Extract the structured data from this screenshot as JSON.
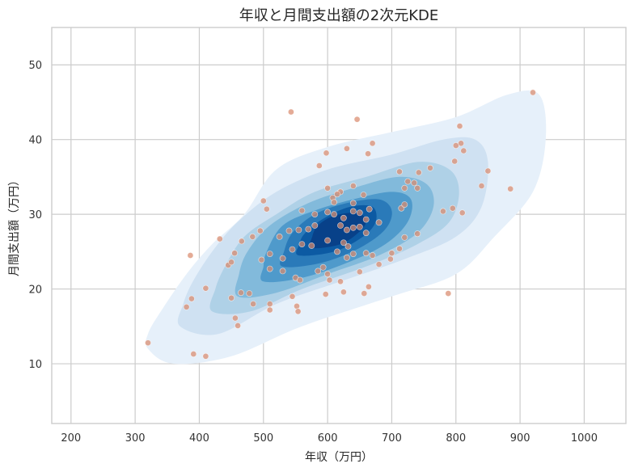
{
  "chart_data": {
    "type": "kde-scatter",
    "title": "年収と月間支出額の2次元KDE",
    "xlabel": "年収（万円）",
    "ylabel": "月間支出額（万円）",
    "xlim": [
      170,
      1065
    ],
    "ylim": [
      2,
      55
    ],
    "xticks": [
      200,
      300,
      400,
      500,
      600,
      700,
      800,
      900,
      1000
    ],
    "yticks": [
      10,
      20,
      30,
      40,
      50
    ],
    "grid": true,
    "colors": {
      "kde_levels": [
        "#e6f0fa",
        "#cfe1f2",
        "#afd1e7",
        "#82badb",
        "#4f9acb",
        "#2a7ab9",
        "#0c5aa3",
        "#084189"
      ],
      "points": "#d98b6e"
    },
    "kde_levels": [
      [
        [
          320,
          12
        ],
        [
          360,
          10
        ],
        [
          450,
          11
        ],
        [
          560,
          15
        ],
        [
          700,
          19
        ],
        [
          800,
          22
        ],
        [
          860,
          27
        ],
        [
          920,
          33
        ],
        [
          940,
          40
        ],
        [
          930,
          46
        ],
        [
          880,
          46
        ],
        [
          800,
          43
        ],
        [
          700,
          41
        ],
        [
          600,
          39
        ],
        [
          520,
          36
        ],
        [
          470,
          30
        ],
        [
          420,
          26
        ],
        [
          380,
          22
        ],
        [
          340,
          17
        ],
        [
          320,
          14
        ]
      ],
      [
        [
          370,
          15
        ],
        [
          430,
          14
        ],
        [
          520,
          18
        ],
        [
          620,
          21
        ],
        [
          720,
          24
        ],
        [
          800,
          27
        ],
        [
          840,
          31
        ],
        [
          850,
          37
        ],
        [
          830,
          40
        ],
        [
          780,
          40
        ],
        [
          700,
          38
        ],
        [
          600,
          36
        ],
        [
          520,
          33
        ],
        [
          460,
          29
        ],
        [
          420,
          25
        ],
        [
          390,
          21
        ],
        [
          375,
          18
        ]
      ],
      [
        [
          420,
          17
        ],
        [
          480,
          17
        ],
        [
          560,
          20
        ],
        [
          660,
          23
        ],
        [
          740,
          26
        ],
        [
          790,
          29
        ],
        [
          805,
          33
        ],
        [
          790,
          36
        ],
        [
          740,
          37
        ],
        [
          660,
          35
        ],
        [
          580,
          33
        ],
        [
          520,
          30
        ],
        [
          470,
          27
        ],
        [
          440,
          23
        ],
        [
          425,
          20
        ]
      ],
      [
        [
          460,
          19
        ],
        [
          520,
          19.5
        ],
        [
          600,
          22
        ],
        [
          680,
          24.5
        ],
        [
          740,
          27.5
        ],
        [
          765,
          31
        ],
        [
          755,
          34
        ],
        [
          710,
          35
        ],
        [
          640,
          33.5
        ],
        [
          570,
          31.5
        ],
        [
          510,
          28.5
        ],
        [
          475,
          25
        ],
        [
          462,
          22
        ]
      ],
      [
        [
          500,
          21
        ],
        [
          560,
          21.5
        ],
        [
          630,
          23.5
        ],
        [
          690,
          26
        ],
        [
          725,
          29
        ],
        [
          730,
          32
        ],
        [
          700,
          33
        ],
        [
          640,
          32
        ],
        [
          580,
          30.5
        ],
        [
          530,
          28.5
        ],
        [
          505,
          25
        ],
        [
          500,
          23
        ]
      ],
      [
        [
          530,
          23
        ],
        [
          590,
          23.5
        ],
        [
          650,
          25.5
        ],
        [
          690,
          28
        ],
        [
          700,
          30.5
        ],
        [
          680,
          32
        ],
        [
          630,
          31.5
        ],
        [
          580,
          30
        ],
        [
          545,
          27.5
        ],
        [
          532,
          25
        ]
      ],
      [
        [
          555,
          24.5
        ],
        [
          610,
          25
        ],
        [
          655,
          27
        ],
        [
          675,
          29
        ],
        [
          670,
          31
        ],
        [
          635,
          31
        ],
        [
          595,
          29.5
        ],
        [
          565,
          27.5
        ],
        [
          556,
          26
        ]
      ],
      [
        [
          575,
          25.5
        ],
        [
          620,
          26
        ],
        [
          650,
          27.7
        ],
        [
          660,
          29.2
        ],
        [
          645,
          30.2
        ],
        [
          610,
          29.8
        ],
        [
          585,
          28.5
        ],
        [
          576,
          27
        ]
      ]
    ],
    "points": [
      [
        920,
        46.3
      ],
      [
        543,
        43.7
      ],
      [
        646,
        42.7
      ],
      [
        806,
        41.8
      ],
      [
        670,
        39.5
      ],
      [
        808,
        39.5
      ],
      [
        812,
        38.5
      ],
      [
        798,
        37.1
      ],
      [
        800,
        39.2
      ],
      [
        598,
        38.2
      ],
      [
        630,
        38.8
      ],
      [
        663,
        38.1
      ],
      [
        587,
        36.5
      ],
      [
        850,
        35.8
      ],
      [
        760,
        36.2
      ],
      [
        742,
        35.6
      ],
      [
        712,
        35.7
      ],
      [
        725,
        34.4
      ],
      [
        735,
        34.2
      ],
      [
        740,
        33.5
      ],
      [
        720,
        33.5
      ],
      [
        640,
        33.8
      ],
      [
        620,
        33.0
      ],
      [
        600,
        33.5
      ],
      [
        608,
        32.2
      ],
      [
        615,
        32.7
      ],
      [
        656,
        32.6
      ],
      [
        610,
        31.6
      ],
      [
        665,
        30.7
      ],
      [
        640,
        31.5
      ],
      [
        840,
        33.8
      ],
      [
        885,
        33.4
      ],
      [
        500,
        31.8
      ],
      [
        505,
        30.7
      ],
      [
        560,
        30.5
      ],
      [
        580,
        30.0
      ],
      [
        600,
        30.3
      ],
      [
        610,
        30.0
      ],
      [
        625,
        29.5
      ],
      [
        640,
        30.4
      ],
      [
        650,
        30.2
      ],
      [
        660,
        29.3
      ],
      [
        680,
        28.9
      ],
      [
        650,
        28.3
      ],
      [
        640,
        28.2
      ],
      [
        660,
        27.5
      ],
      [
        630,
        27.9
      ],
      [
        620,
        28.5
      ],
      [
        580,
        28.5
      ],
      [
        570,
        28.0
      ],
      [
        555,
        27.9
      ],
      [
        540,
        27.8
      ],
      [
        525,
        27.0
      ],
      [
        495,
        27.8
      ],
      [
        483,
        27.0
      ],
      [
        466,
        26.4
      ],
      [
        432,
        26.7
      ],
      [
        455,
        24.8
      ],
      [
        510,
        24.7
      ],
      [
        530,
        24.1
      ],
      [
        545,
        25.3
      ],
      [
        560,
        26.0
      ],
      [
        575,
        25.8
      ],
      [
        600,
        26.5
      ],
      [
        615,
        25.0
      ],
      [
        625,
        26.2
      ],
      [
        632,
        25.7
      ],
      [
        640,
        24.7
      ],
      [
        660,
        24.8
      ],
      [
        670,
        24.5
      ],
      [
        700,
        24.8
      ],
      [
        712,
        25.4
      ],
      [
        720,
        26.9
      ],
      [
        740,
        27.4
      ],
      [
        715,
        30.8
      ],
      [
        720,
        31.3
      ],
      [
        795,
        30.8
      ],
      [
        780,
        30.4
      ],
      [
        810,
        30.2
      ],
      [
        497,
        23.9
      ],
      [
        510,
        22.7
      ],
      [
        530,
        22.4
      ],
      [
        550,
        21.5
      ],
      [
        557,
        21.2
      ],
      [
        585,
        22.4
      ],
      [
        593,
        22.9
      ],
      [
        600,
        22.0
      ],
      [
        603,
        21.2
      ],
      [
        620,
        21.0
      ],
      [
        650,
        22.3
      ],
      [
        680,
        23.3
      ],
      [
        698,
        24.0
      ],
      [
        630,
        24.2
      ],
      [
        386,
        24.5
      ],
      [
        445,
        23.2
      ],
      [
        450,
        23.6
      ],
      [
        465,
        19.5
      ],
      [
        478,
        19.4
      ],
      [
        510,
        17.2
      ],
      [
        510,
        18.0
      ],
      [
        545,
        19.0
      ],
      [
        552,
        17.7
      ],
      [
        554,
        17.0
      ],
      [
        597,
        19.3
      ],
      [
        625,
        19.6
      ],
      [
        657,
        19.4
      ],
      [
        664,
        20.3
      ],
      [
        410,
        20.1
      ],
      [
        450,
        18.8
      ],
      [
        484,
        18.0
      ],
      [
        388,
        18.7
      ],
      [
        380,
        17.6
      ],
      [
        456,
        16.1
      ],
      [
        460,
        15.1
      ],
      [
        320,
        12.8
      ],
      [
        391,
        11.3
      ],
      [
        410,
        11.0
      ],
      [
        788,
        19.4
      ]
    ]
  }
}
